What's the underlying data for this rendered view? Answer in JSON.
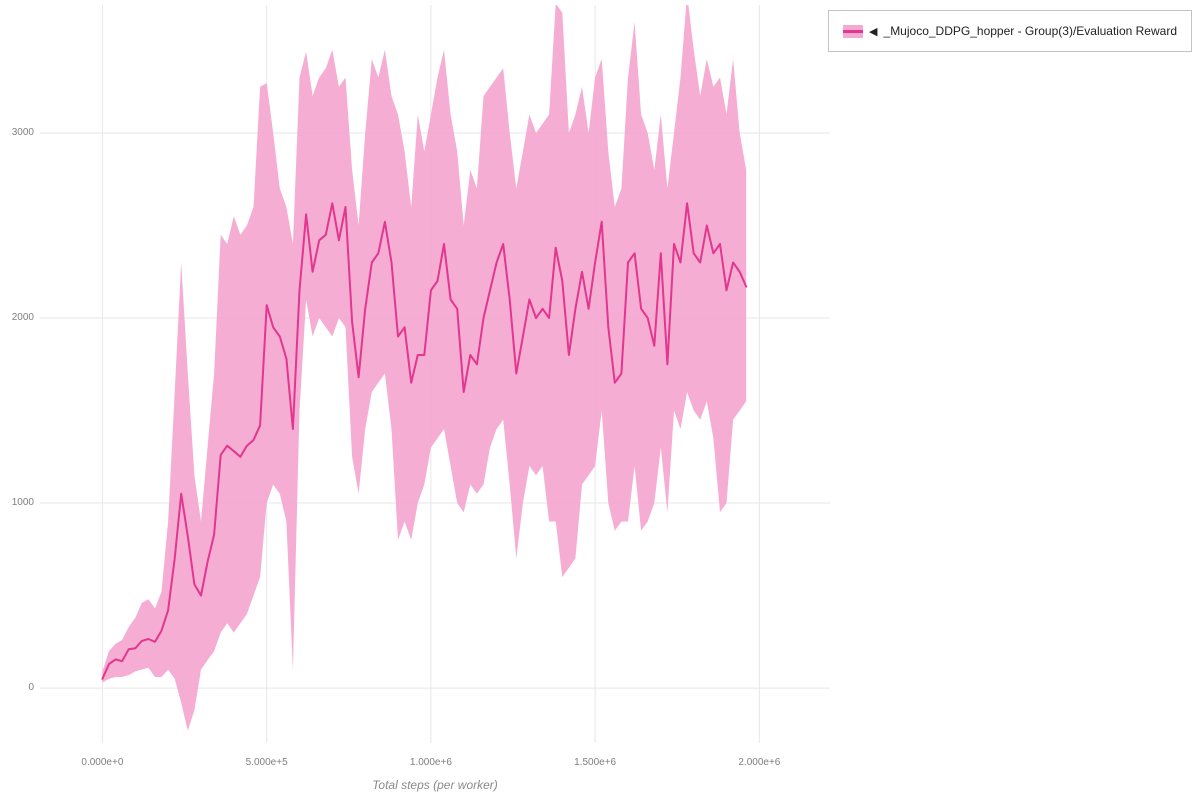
{
  "legend": {
    "collapse_icon": "◀",
    "items": [
      {
        "label": "_Mujoco_DDPG_hopper - Group(3)/Evaluation Reward"
      }
    ]
  },
  "chart_data": {
    "type": "line",
    "title": "",
    "xlabel": "Total steps (per worker)",
    "ylabel": "",
    "xlim": [
      -190000,
      2215000
    ],
    "ylim": [
      -297,
      3692
    ],
    "grid": true,
    "grid_color": "#e7e7e7",
    "background": "#ffffff",
    "legend_position": "top-right-outside",
    "x_ticks": [
      {
        "value": 0,
        "label": "0.000e+0"
      },
      {
        "value": 500000,
        "label": "5.000e+5"
      },
      {
        "value": 1000000,
        "label": "1.000e+6"
      },
      {
        "value": 1500000,
        "label": "1.500e+6"
      },
      {
        "value": 2000000,
        "label": "2.000e+6"
      }
    ],
    "y_ticks": [
      {
        "value": 0,
        "label": "0"
      },
      {
        "value": 1000,
        "label": "1000"
      },
      {
        "value": 2000,
        "label": "2000"
      },
      {
        "value": 3000,
        "label": "3000"
      }
    ],
    "series": [
      {
        "name": "Mujoco_DDPG_hopper - Group(3)/Evaluation Reward",
        "line_color": "#e2368f",
        "band_color": "#f4a9d1",
        "band_opacity": 0.95,
        "x": [
          0,
          20000,
          40000,
          60000,
          80000,
          100000,
          120000,
          140000,
          160000,
          180000,
          200000,
          220000,
          240000,
          260000,
          280000,
          300000,
          320000,
          340000,
          360000,
          380000,
          400000,
          420000,
          440000,
          460000,
          480000,
          500000,
          520000,
          540000,
          560000,
          580000,
          600000,
          620000,
          640000,
          660000,
          680000,
          700000,
          720000,
          740000,
          760000,
          780000,
          800000,
          820000,
          840000,
          860000,
          880000,
          900000,
          920000,
          940000,
          960000,
          980000,
          1000000,
          1020000,
          1040000,
          1060000,
          1080000,
          1100000,
          1120000,
          1140000,
          1160000,
          1180000,
          1200000,
          1220000,
          1240000,
          1260000,
          1280000,
          1300000,
          1320000,
          1340000,
          1360000,
          1380000,
          1400000,
          1420000,
          1440000,
          1460000,
          1480000,
          1500000,
          1520000,
          1540000,
          1560000,
          1580000,
          1600000,
          1620000,
          1640000,
          1660000,
          1680000,
          1700000,
          1720000,
          1740000,
          1760000,
          1780000,
          1800000,
          1820000,
          1840000,
          1860000,
          1880000,
          1900000,
          1920000,
          1940000,
          1960000
        ],
        "mean": [
          50,
          130,
          155,
          145,
          210,
          215,
          255,
          265,
          250,
          310,
          420,
          700,
          1050,
          820,
          560,
          500,
          680,
          830,
          1260,
          1310,
          1280,
          1250,
          1310,
          1340,
          1420,
          2070,
          1950,
          1900,
          1780,
          1400,
          2150,
          2560,
          2250,
          2420,
          2450,
          2620,
          2420,
          2600,
          1980,
          1680,
          2050,
          2300,
          2350,
          2520,
          2300,
          1900,
          1950,
          1650,
          1800,
          1800,
          2150,
          2200,
          2400,
          2100,
          2050,
          1600,
          1800,
          1750,
          2000,
          2150,
          2300,
          2400,
          2100,
          1700,
          1900,
          2100,
          2000,
          2050,
          2000,
          2380,
          2200,
          1800,
          2050,
          2250,
          2050,
          2300,
          2520,
          1950,
          1650,
          1700,
          2300,
          2350,
          2050,
          2000,
          1850,
          2350,
          1750,
          2400,
          2300,
          2620,
          2350,
          2300,
          2500,
          2350,
          2400,
          2150,
          2300,
          2250,
          2170
        ],
        "lower": [
          30,
          50,
          60,
          60,
          70,
          90,
          100,
          110,
          60,
          60,
          100,
          50,
          -80,
          -230,
          -120,
          100,
          150,
          200,
          300,
          350,
          300,
          350,
          400,
          500,
          600,
          1000,
          1100,
          1050,
          900,
          100,
          1500,
          2100,
          1900,
          2000,
          1950,
          1900,
          2000,
          1950,
          1250,
          1050,
          1400,
          1600,
          1650,
          1700,
          1400,
          800,
          900,
          800,
          1000,
          1100,
          1300,
          1350,
          1400,
          1200,
          1000,
          950,
          1100,
          1050,
          1100,
          1300,
          1400,
          1450,
          1100,
          700,
          1000,
          1200,
          1150,
          1200,
          900,
          900,
          600,
          650,
          700,
          1100,
          1150,
          1200,
          1500,
          1000,
          850,
          900,
          900,
          1200,
          850,
          900,
          1000,
          1300,
          950,
          1500,
          1400,
          1600,
          1500,
          1450,
          1550,
          1350,
          950,
          1000,
          1450,
          1500,
          1550
        ],
        "upper": [
          90,
          200,
          240,
          260,
          330,
          380,
          460,
          480,
          430,
          520,
          900,
          1600,
          2300,
          1700,
          1150,
          900,
          1300,
          1700,
          2450,
          2400,
          2550,
          2450,
          2500,
          2600,
          3250,
          3270,
          3000,
          2700,
          2600,
          2400,
          3300,
          3440,
          3200,
          3300,
          3350,
          3450,
          3250,
          3300,
          2800,
          2500,
          3000,
          3400,
          3300,
          3450,
          3200,
          3100,
          2900,
          2600,
          3100,
          2900,
          3100,
          3300,
          3450,
          3100,
          2900,
          2500,
          2800,
          2700,
          3200,
          3250,
          3300,
          3350,
          3000,
          2700,
          2900,
          3100,
          3000,
          3050,
          3100,
          3700,
          3650,
          3000,
          3100,
          3250,
          3000,
          3300,
          3400,
          2900,
          2600,
          2700,
          3300,
          3600,
          3100,
          3000,
          2800,
          3100,
          2700,
          3000,
          3300,
          3750,
          3450,
          3200,
          3400,
          3250,
          3300,
          3100,
          3400,
          3000,
          2800
        ]
      }
    ]
  }
}
